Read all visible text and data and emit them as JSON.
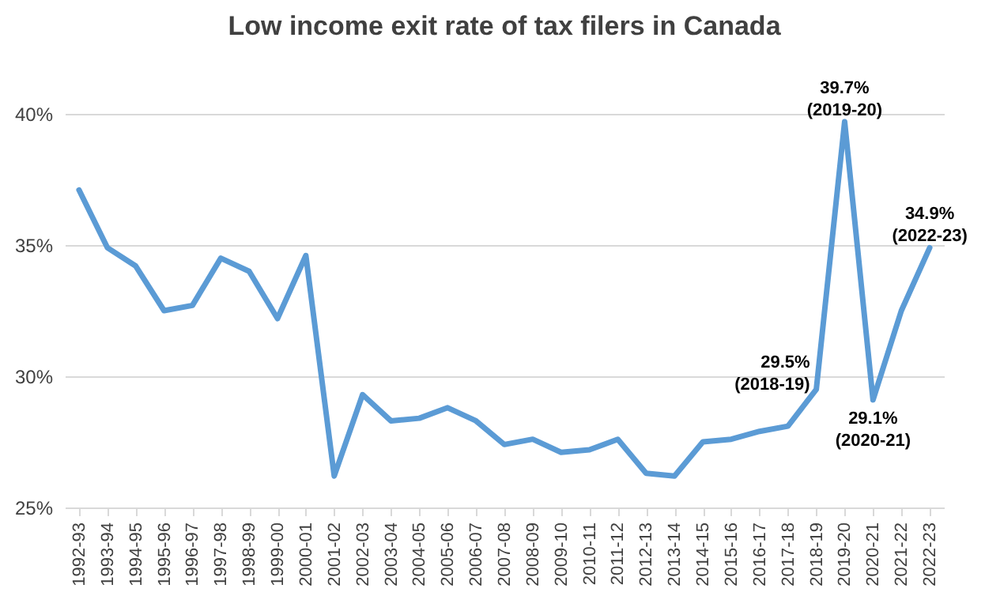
{
  "chart_data": {
    "type": "line",
    "title": "Low income exit rate of tax filers in Canada",
    "categories": [
      "1992-93",
      "1993-94",
      "1994-95",
      "1995-96",
      "1996-97",
      "1997-98",
      "1998-99",
      "1999-00",
      "2000-01",
      "2001-02",
      "2002-03",
      "2003-04",
      "2004-05",
      "2005-06",
      "2006-07",
      "2007-08",
      "2008-09",
      "2009-10",
      "2010-11",
      "2011-12",
      "2012-13",
      "2013-14",
      "2014-15",
      "2015-16",
      "2016-17",
      "2017-18",
      "2018-19",
      "2019-20",
      "2020-21",
      "2021-22",
      "2022-23"
    ],
    "series": [
      {
        "color": "#5b9bd5",
        "values": [
          37.1,
          34.9,
          34.2,
          32.5,
          32.7,
          34.5,
          34.0,
          32.2,
          34.6,
          26.2,
          29.3,
          28.3,
          28.4,
          28.8,
          28.3,
          27.4,
          27.6,
          27.1,
          27.2,
          27.6,
          26.3,
          26.2,
          27.5,
          27.6,
          27.9,
          28.1,
          29.5,
          39.7,
          29.1,
          32.5,
          34.9
        ]
      }
    ],
    "ylim": [
      25,
      40
    ],
    "yticks": [
      {
        "value": 25,
        "label": "25%"
      },
      {
        "value": 30,
        "label": "30%"
      },
      {
        "value": 35,
        "label": "35%"
      },
      {
        "value": 40,
        "label": "40%"
      }
    ],
    "grid": "y",
    "marker": "none",
    "line_style": "solid",
    "annotations": [
      {
        "text": "29.5%\n(2018-19)",
        "x": "2018-19",
        "y": 29.5
      },
      {
        "text": "39.7%\n(2019-20)",
        "x": "2019-20",
        "y": 39.7
      },
      {
        "text": "29.1%\n(2020-21)",
        "x": "2020-21",
        "y": 29.1
      },
      {
        "text": "34.9%\n(2022-23)",
        "x": "2022-23",
        "y": 34.9
      }
    ]
  }
}
